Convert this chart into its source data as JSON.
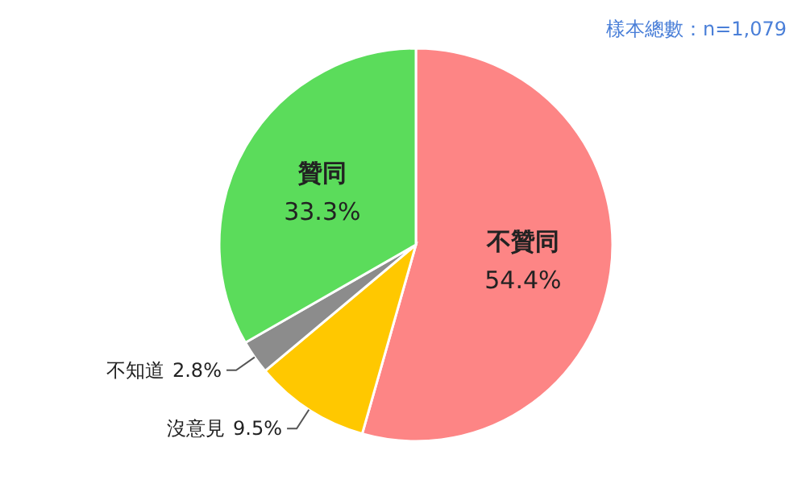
{
  "chart_data": {
    "type": "pie",
    "categories": [
      "不贊同",
      "沒意見",
      "不知道",
      "贊同"
    ],
    "values": [
      54.4,
      9.5,
      2.8,
      33.3
    ],
    "colors": [
      "#fd8585",
      "#ffc800",
      "#8c8c8c",
      "#5bdc5b"
    ],
    "value_labels": [
      "54.4%",
      "9.5%",
      "2.8%",
      "33.3%"
    ],
    "annotations": [
      "樣本總數：n=1,079"
    ]
  }
}
